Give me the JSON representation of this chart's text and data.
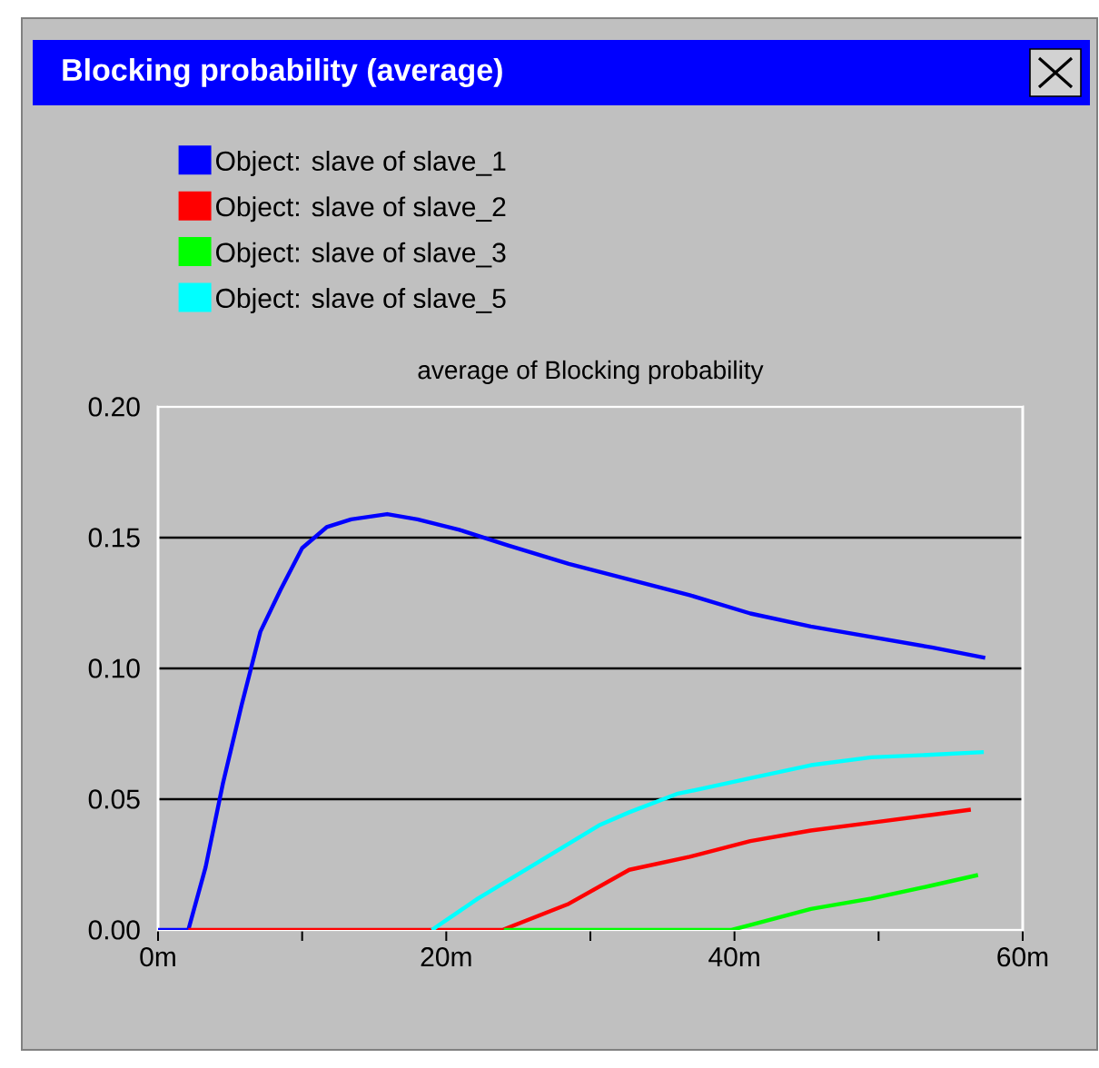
{
  "chart_data": {
    "type": "line",
    "title": "Blocking probability (average)",
    "subtitle": "average of Blocking probability",
    "series": [
      {
        "name": "Object: slave of slave_1",
        "color": "#0000ff",
        "x": [
          0,
          2.1,
          3.3,
          4.5,
          5.8,
          7.1,
          8.5,
          10,
          11.7,
          13.4,
          15.9,
          18,
          20.9,
          24.3,
          28.5,
          32.7,
          36.9,
          41.1,
          45.3,
          49.5,
          53.7,
          57.4
        ],
        "values": [
          0,
          0,
          0.024,
          0.056,
          0.086,
          0.114,
          0.13,
          0.146,
          0.154,
          0.157,
          0.159,
          0.157,
          0.153,
          0.147,
          0.14,
          0.134,
          0.128,
          0.121,
          0.116,
          0.112,
          0.108,
          0.104
        ]
      },
      {
        "name": "Object: slave of slave_2",
        "color": "#ff0000",
        "x": [
          2.1,
          23.9,
          28.5,
          32.7,
          36.9,
          41.1,
          45.3,
          49.5,
          53.7,
          56.4
        ],
        "values": [
          0,
          0,
          0.01,
          0.023,
          0.028,
          0.034,
          0.038,
          0.041,
          0.044,
          0.046
        ]
      },
      {
        "name": "Object: slave of slave_3",
        "color": "#00ff00",
        "x": [
          24,
          39.8,
          45.3,
          49.5,
          53.7,
          56.9
        ],
        "values": [
          0,
          0,
          0.008,
          0.012,
          0.017,
          0.021
        ]
      },
      {
        "name": "Object: slave of slave_5",
        "color": "#00ffff",
        "x": [
          19,
          22.2,
          26.4,
          30.6,
          32.7,
          36,
          41.1,
          45.3,
          49.5,
          53.7,
          57.3
        ],
        "values": [
          0,
          0.012,
          0.026,
          0.04,
          0.045,
          0.052,
          0.058,
          0.063,
          0.066,
          0.067,
          0.068
        ]
      }
    ],
    "xlim": [
      0,
      60
    ],
    "xticks": [
      {
        "value": 0,
        "label": "0m"
      },
      {
        "value": 10,
        "label": null
      },
      {
        "value": 20,
        "label": "20m"
      },
      {
        "value": 30,
        "label": null
      },
      {
        "value": 40,
        "label": "40m"
      },
      {
        "value": 50,
        "label": null
      },
      {
        "value": 60,
        "label": "60m"
      }
    ],
    "ylim": [
      0,
      0.2
    ],
    "yticks": [
      {
        "value": 0,
        "label": "0.00"
      },
      {
        "value": 0.05,
        "label": "0.05"
      },
      {
        "value": 0.1,
        "label": "0.10"
      },
      {
        "value": 0.15,
        "label": "0.15"
      },
      {
        "value": 0.2,
        "label": "0.20"
      }
    ],
    "grid": "y",
    "legend": "top",
    "marker": "none",
    "line_style": "solid"
  }
}
